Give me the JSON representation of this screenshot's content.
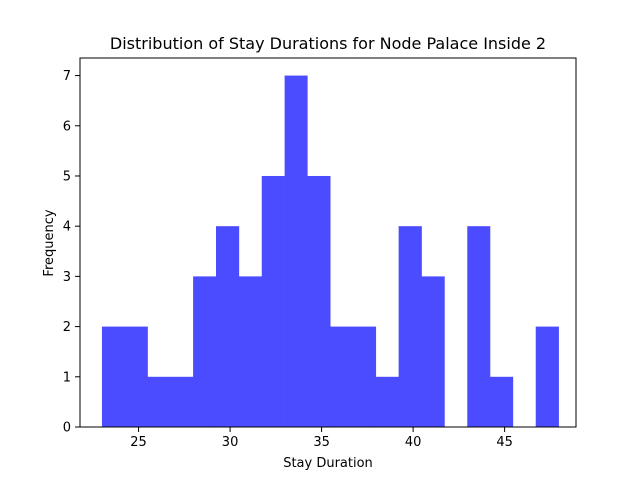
{
  "chart_data": {
    "type": "bar",
    "title": "Distribution of Stay Durations for Node Palace Inside 2",
    "xlabel": "Stay Duration",
    "ylabel": "Frequency",
    "xlim": [
      21.8,
      48.9
    ],
    "ylim": [
      0,
      7.35
    ],
    "xticks": [
      25,
      30,
      35,
      40,
      45
    ],
    "yticks": [
      0,
      1,
      2,
      3,
      4,
      5,
      6,
      7
    ],
    "bar_color": "#4b4bff",
    "bins": [
      {
        "x0": 23.0,
        "x1": 25.49,
        "value": 2
      },
      {
        "x0": 25.49,
        "x1": 27.98,
        "value": 1
      },
      {
        "x0": 27.98,
        "x1": 29.23,
        "value": 3
      },
      {
        "x0": 29.23,
        "x1": 30.48,
        "value": 4
      },
      {
        "x0": 30.48,
        "x1": 31.73,
        "value": 3
      },
      {
        "x0": 31.73,
        "x1": 32.98,
        "value": 5
      },
      {
        "x0": 32.98,
        "x1": 34.22,
        "value": 7
      },
      {
        "x0": 34.22,
        "x1": 35.47,
        "value": 5
      },
      {
        "x0": 35.47,
        "x1": 37.96,
        "value": 2
      },
      {
        "x0": 37.96,
        "x1": 39.21,
        "value": 1
      },
      {
        "x0": 39.21,
        "x1": 40.46,
        "value": 4
      },
      {
        "x0": 40.46,
        "x1": 41.71,
        "value": 3
      },
      {
        "x0": 41.71,
        "x1": 42.96,
        "value": 0
      },
      {
        "x0": 42.96,
        "x1": 44.2,
        "value": 4
      },
      {
        "x0": 44.2,
        "x1": 45.45,
        "value": 1
      },
      {
        "x0": 45.45,
        "x1": 46.7,
        "value": 0
      },
      {
        "x0": 46.7,
        "x1": 47.95,
        "value": 2
      }
    ]
  }
}
